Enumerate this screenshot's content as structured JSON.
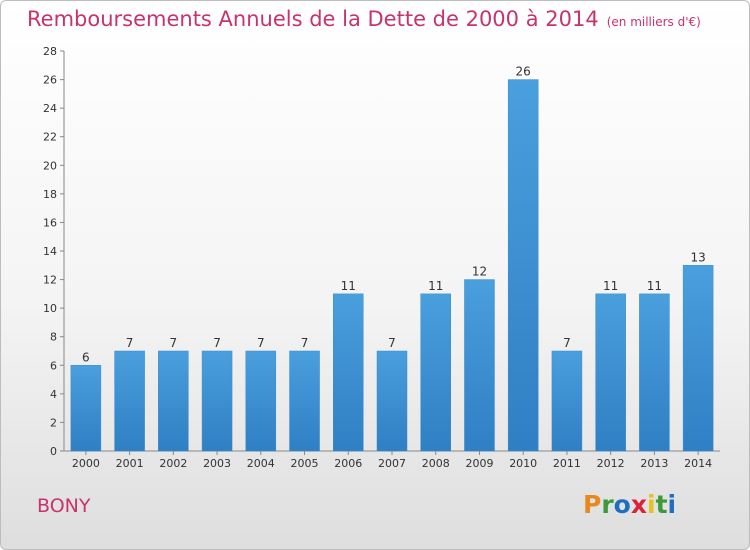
{
  "chart_data": {
    "type": "bar",
    "title": "Remboursements Annuels de la Dette de 2000 à 2014",
    "subtitle": "(en milliers d'€)",
    "categories": [
      "2000",
      "2001",
      "2002",
      "2003",
      "2004",
      "2005",
      "2006",
      "2007",
      "2008",
      "2009",
      "2010",
      "2011",
      "2012",
      "2013",
      "2014"
    ],
    "values": [
      6,
      7,
      7,
      7,
      7,
      7,
      11,
      7,
      11,
      12,
      26,
      7,
      11,
      11,
      13
    ],
    "ylim": [
      0,
      28
    ],
    "yticks": [
      0,
      2,
      4,
      6,
      8,
      10,
      12,
      14,
      16,
      18,
      20,
      22,
      24,
      26,
      28
    ],
    "grid": false,
    "bar_color": "#4a9fdd",
    "bar_color_dark": "#2f7fc4",
    "label_color": "#333333"
  },
  "footer": {
    "commune": "BONY",
    "logo_letters": [
      "P",
      "r",
      "o",
      "x",
      "i",
      "t",
      "i"
    ],
    "logo_colors": [
      "#e8891e",
      "#3c9a3c",
      "#1f6fbf",
      "#d9233b",
      "#e8c21e",
      "#3c9a3c",
      "#1f6fbf"
    ]
  }
}
